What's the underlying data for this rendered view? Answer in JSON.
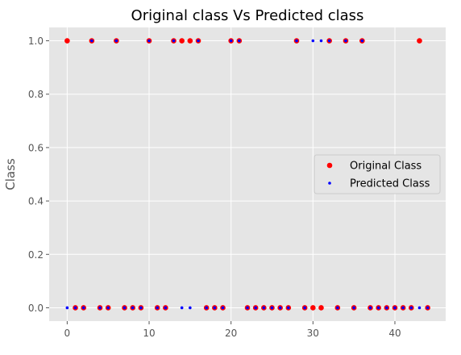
{
  "chart_data": {
    "type": "scatter",
    "title": "Original class Vs Predicted class",
    "xlabel": "",
    "ylabel": "Class",
    "xlim": [
      -2.2,
      46.2
    ],
    "ylim": [
      -0.05,
      1.05
    ],
    "xticks": [
      "0",
      "10",
      "20",
      "30",
      "40"
    ],
    "yticks": [
      "0.0",
      "0.2",
      "0.4",
      "0.6",
      "0.8",
      "1.0"
    ],
    "grid": true,
    "legend_position": "center-right",
    "series": [
      {
        "name": "Original Class",
        "color": "#ff0000",
        "marker": "large-dot",
        "x": [
          0,
          1,
          2,
          3,
          4,
          5,
          6,
          7,
          8,
          9,
          10,
          11,
          12,
          13,
          14,
          15,
          16,
          17,
          18,
          19,
          20,
          21,
          22,
          23,
          24,
          25,
          26,
          27,
          28,
          29,
          30,
          31,
          32,
          33,
          34,
          35,
          36,
          37,
          38,
          39,
          40,
          41,
          42,
          43,
          44
        ],
        "y": [
          1,
          0,
          0,
          1,
          0,
          0,
          1,
          0,
          0,
          0,
          1,
          0,
          0,
          1,
          1,
          1,
          1,
          0,
          0,
          0,
          1,
          1,
          0,
          0,
          0,
          0,
          0,
          0,
          1,
          0,
          0,
          0,
          1,
          0,
          1,
          0,
          1,
          0,
          0,
          0,
          0,
          0,
          0,
          1,
          0
        ]
      },
      {
        "name": "Predicted Class",
        "color": "#0000ff",
        "marker": "small-dot",
        "x": [
          0,
          1,
          2,
          3,
          4,
          5,
          6,
          7,
          8,
          9,
          10,
          11,
          12,
          13,
          14,
          15,
          16,
          17,
          18,
          19,
          20,
          21,
          22,
          23,
          24,
          25,
          26,
          27,
          28,
          29,
          30,
          31,
          32,
          33,
          34,
          35,
          36,
          37,
          38,
          39,
          40,
          41,
          42,
          43,
          44
        ],
        "y": [
          0,
          0,
          0,
          1,
          0,
          0,
          1,
          0,
          0,
          0,
          1,
          0,
          0,
          1,
          0,
          0,
          1,
          0,
          0,
          0,
          1,
          1,
          0,
          0,
          0,
          0,
          0,
          0,
          1,
          0,
          1,
          1,
          1,
          0,
          1,
          0,
          1,
          0,
          0,
          0,
          0,
          0,
          0,
          0,
          0
        ]
      }
    ]
  }
}
